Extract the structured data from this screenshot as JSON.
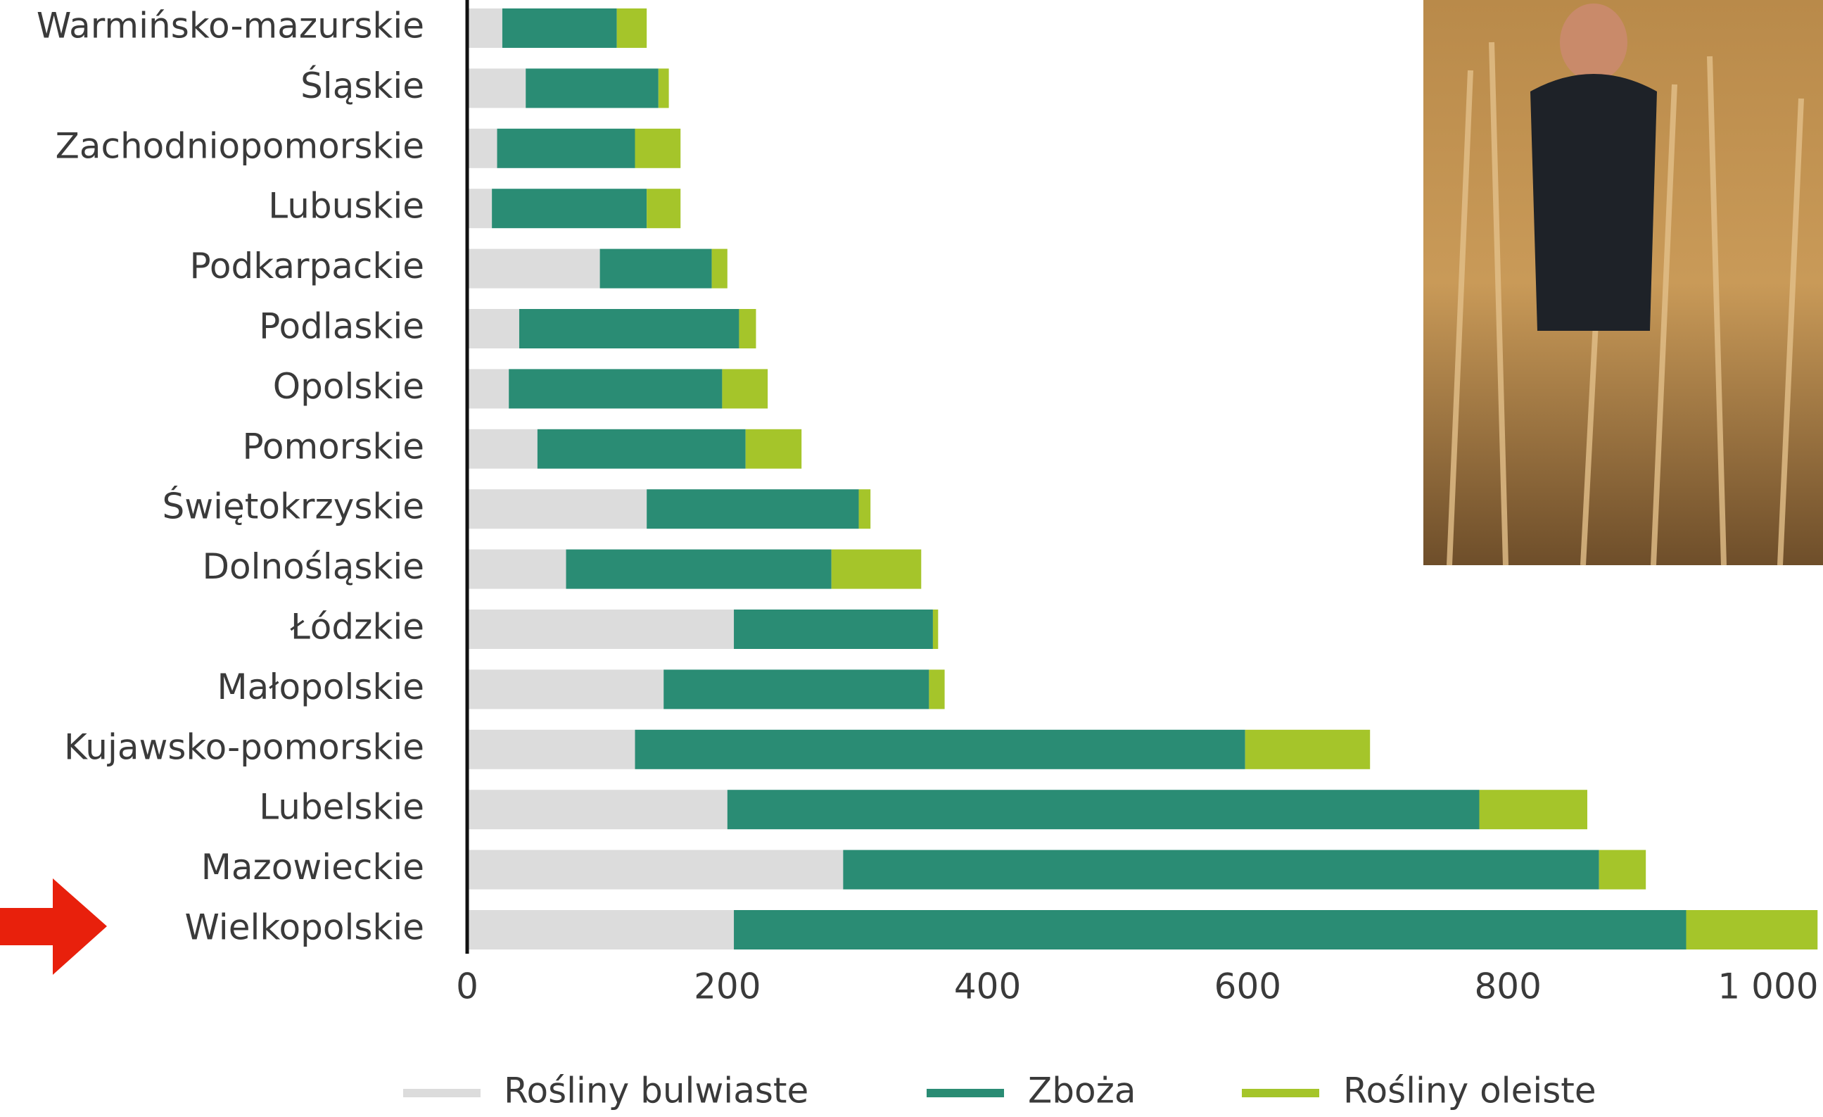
{
  "chart_data": {
    "type": "bar",
    "orientation": "horizontal",
    "categories": [
      "Warmińsko-mazurskie",
      "Śląskie",
      "Zachodniopomorskie",
      "Lubuskie",
      "Podkarpackie",
      "Podlaskie",
      "Opolskie",
      "Pomorskie",
      "Świętokrzyskie",
      "Dolnośląskie",
      "Łódzkie",
      "Małopolskie",
      "Kujawsko-pomorskie",
      "Lubelskie",
      "Mazowieckie",
      "Wielkopolskie"
    ],
    "series": [
      {
        "name": "Rośliny bulwiaste",
        "color": "#dcdcdc",
        "values": [
          27,
          45,
          23,
          19,
          102,
          40,
          32,
          54,
          138,
          76,
          205,
          151,
          129,
          200,
          289,
          205
        ]
      },
      {
        "name": "Zboża",
        "color": "#2a8c74",
        "values": [
          88,
          102,
          106,
          119,
          86,
          169,
          164,
          160,
          163,
          204,
          153,
          204,
          469,
          578,
          581,
          732
        ]
      },
      {
        "name": "Rośliny oleiste",
        "color": "#a5c52a",
        "values": [
          23,
          8,
          35,
          26,
          12,
          13,
          35,
          43,
          9,
          69,
          4,
          12,
          96,
          83,
          36,
          101
        ]
      }
    ],
    "xlim": [
      0,
      1040
    ],
    "xticks": [
      0,
      200,
      400,
      600,
      800,
      {
        "value": 1000,
        "label": "1 000"
      }
    ]
  }
}
